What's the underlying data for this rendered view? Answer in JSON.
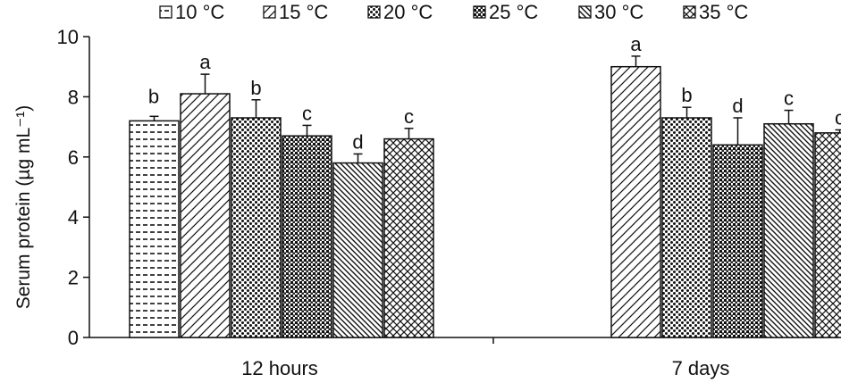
{
  "chart_data": {
    "type": "bar",
    "ylabel": "Serum protein (µg mL⁻¹)",
    "xlabel": "",
    "ylim": [
      0,
      10
    ],
    "yticks": [
      0,
      2,
      4,
      6,
      8,
      10
    ],
    "grid": false,
    "legend_position": "top",
    "categories": [
      "12 hours",
      "7 days"
    ],
    "series": [
      {
        "name": "10 °C",
        "values": [
          7.2,
          null
        ],
        "errors": [
          0.15,
          null
        ],
        "labels": [
          "b",
          ""
        ]
      },
      {
        "name": "15 °C",
        "values": [
          8.1,
          9.0
        ],
        "errors": [
          0.65,
          0.35
        ],
        "labels": [
          "a",
          "a"
        ]
      },
      {
        "name": "20 °C",
        "values": [
          7.3,
          7.3
        ],
        "errors": [
          0.6,
          0.35
        ],
        "labels": [
          "b",
          "b"
        ]
      },
      {
        "name": "25 °C",
        "values": [
          6.7,
          6.4
        ],
        "errors": [
          0.35,
          0.9
        ],
        "labels": [
          "c",
          "d"
        ]
      },
      {
        "name": "30 °C",
        "values": [
          5.8,
          7.1
        ],
        "errors": [
          0.3,
          0.45
        ],
        "labels": [
          "d",
          "c"
        ]
      },
      {
        "name": "35 °C",
        "values": [
          6.6,
          6.8
        ],
        "errors": [
          0.35,
          0.1
        ],
        "labels": [
          "c",
          "c"
        ]
      }
    ]
  }
}
